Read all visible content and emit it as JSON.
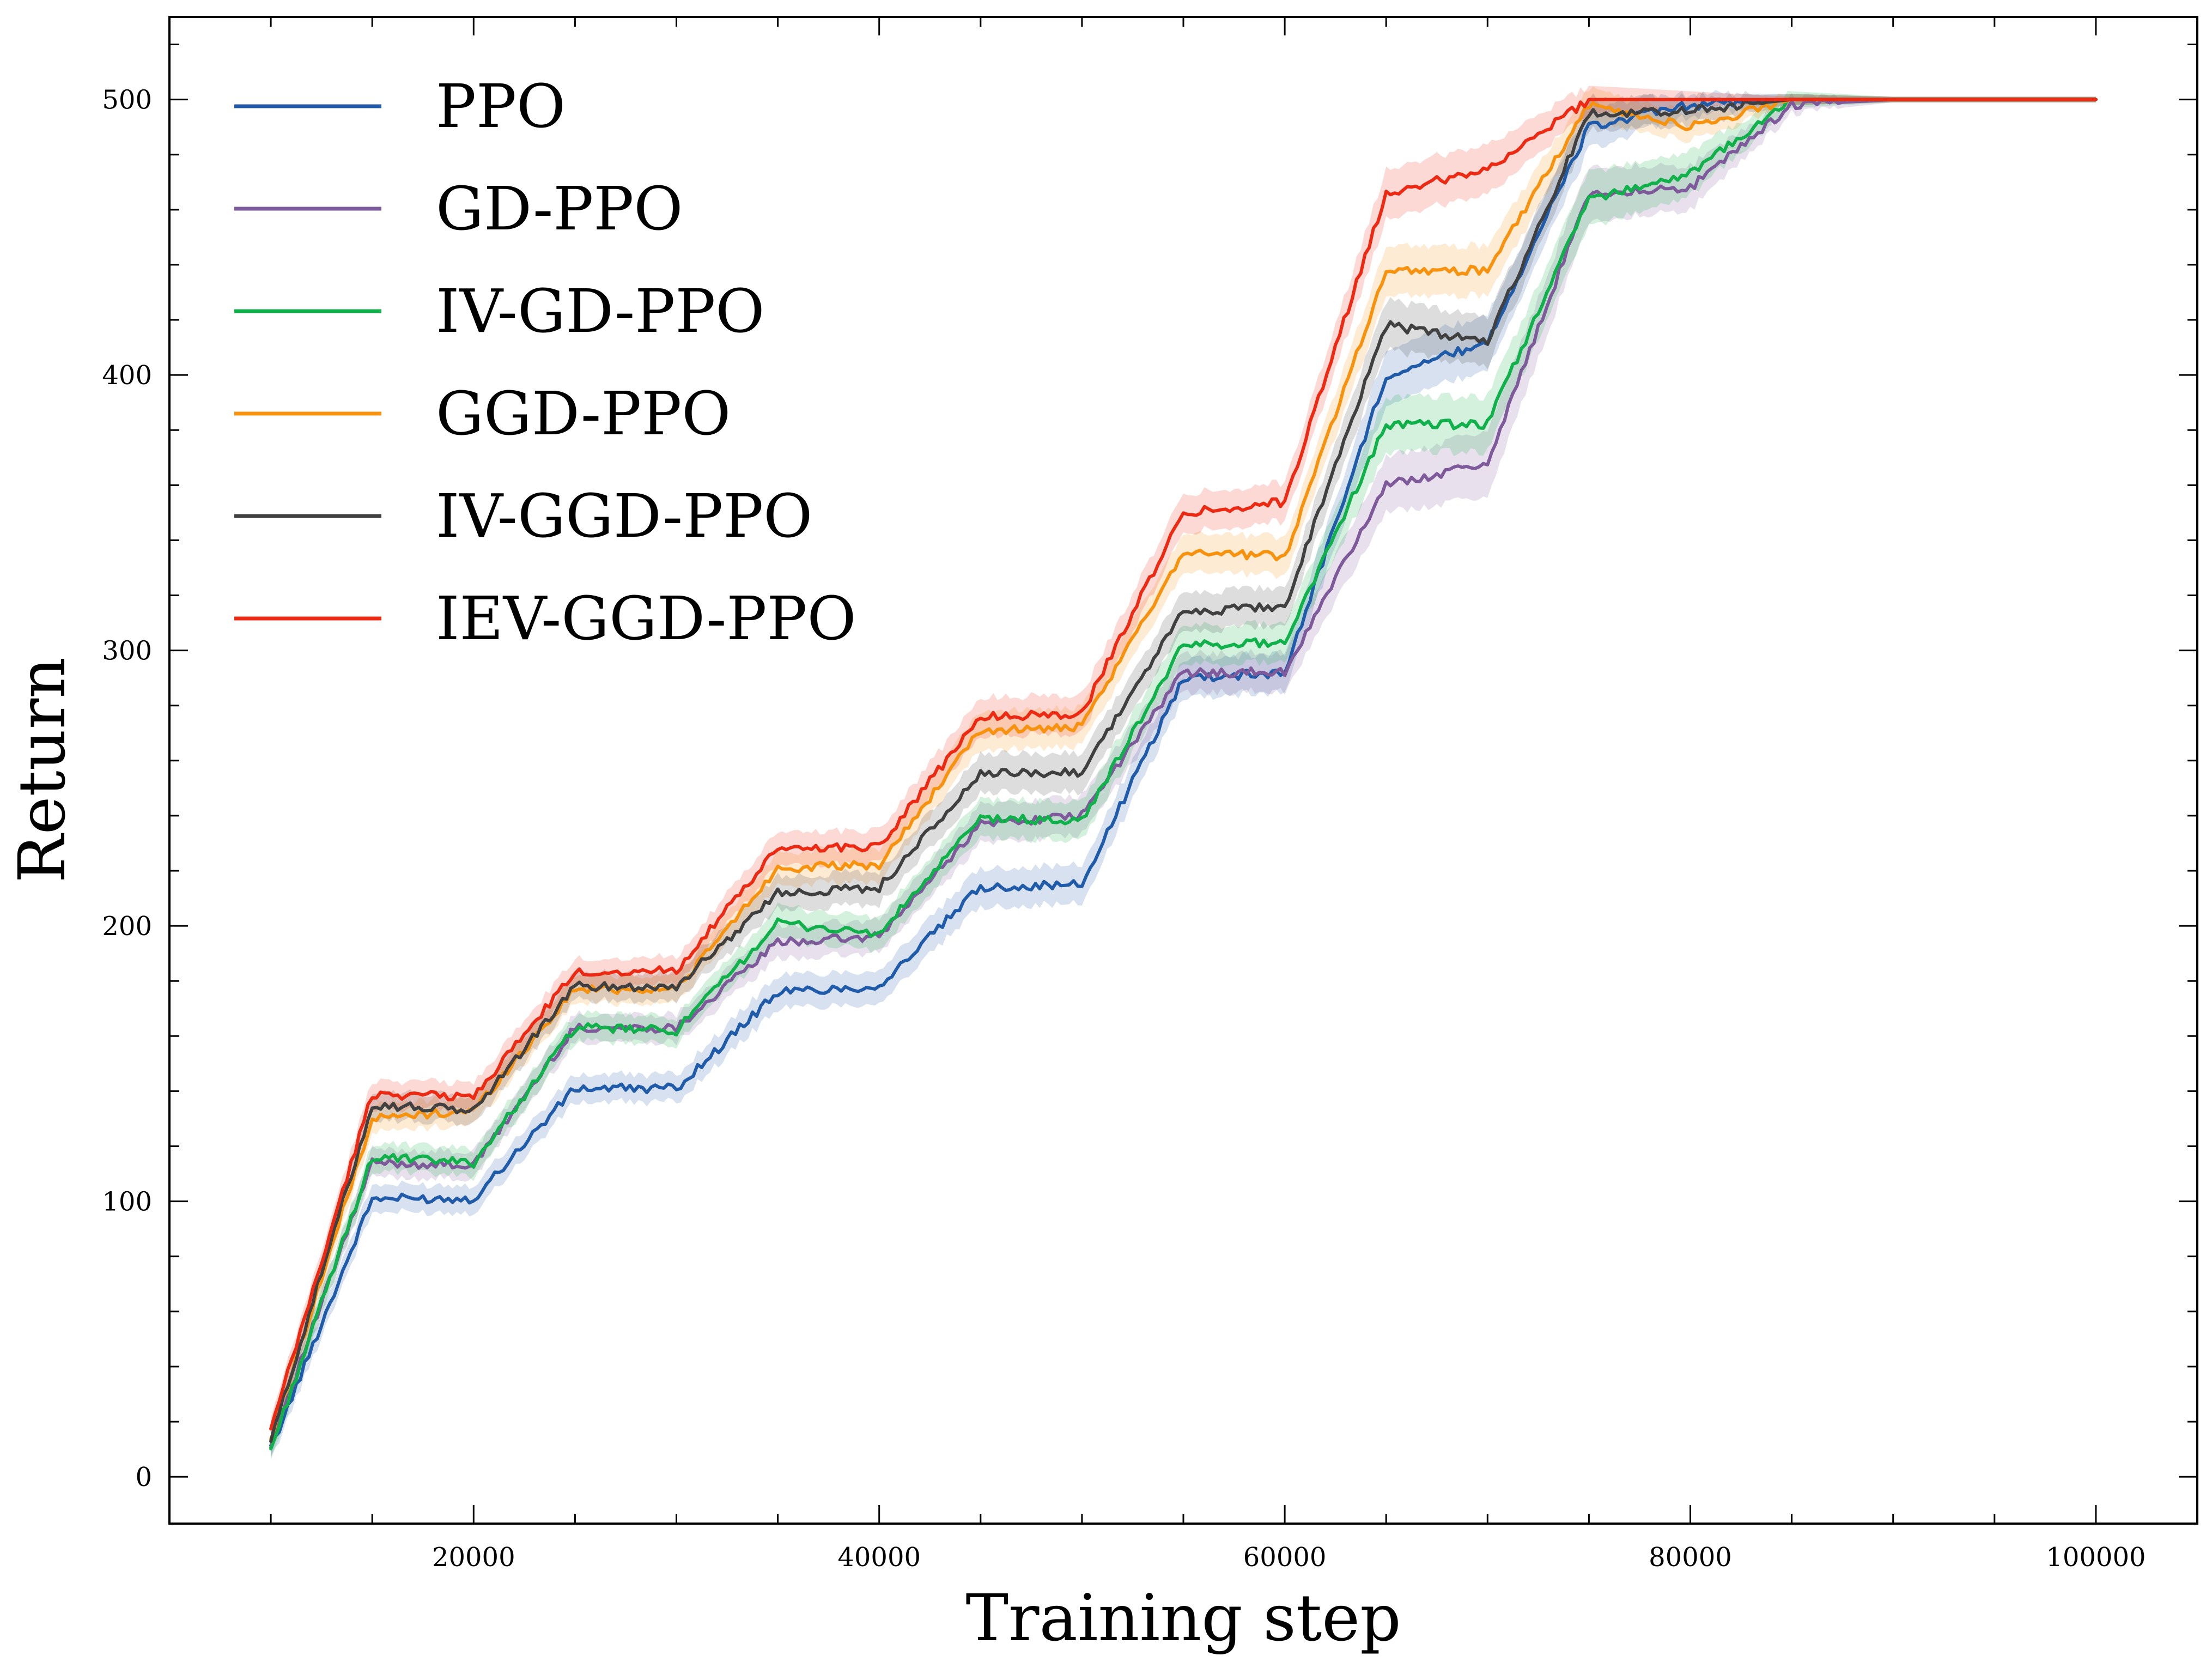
{
  "chart_data": {
    "type": "line",
    "title": "",
    "xlabel": "Training step",
    "ylabel": "Return",
    "xlim": [
      5000,
      105000
    ],
    "ylim": [
      -17,
      530
    ],
    "xticks": [
      20000,
      40000,
      60000,
      80000,
      100000
    ],
    "yticks": [
      0,
      100,
      200,
      300,
      400,
      500
    ],
    "x_minor_step": 5000,
    "y_minor_step": 20,
    "grid": false,
    "legend_position": "top-left",
    "x": [
      10000,
      15000,
      20000,
      25000,
      30000,
      35000,
      40000,
      45000,
      50000,
      55000,
      60000,
      65000,
      70000,
      75000,
      80000,
      85000,
      90000,
      95000,
      100000
    ],
    "series": [
      {
        "name": "PPO",
        "color": "#1f5ba8",
        "values": [
          10,
          101,
          101,
          141,
          141,
          176,
          178,
          214,
          215,
          290,
          292,
          400,
          412,
          490,
          498,
          500,
          500,
          500,
          500
        ],
        "band": [
          4,
          5,
          5,
          5,
          5,
          6,
          6,
          7,
          7,
          7,
          7,
          10,
          10,
          8,
          4,
          2,
          1,
          1,
          1
        ]
      },
      {
        "name": "GD-PPO",
        "color": "#7e5a9b",
        "values": [
          12,
          114,
          113,
          163,
          163,
          194,
          196,
          237,
          240,
          292,
          292,
          360,
          368,
          466,
          468,
          498,
          500,
          500,
          500
        ],
        "band": [
          4,
          5,
          5,
          5,
          5,
          6,
          6,
          7,
          7,
          7,
          7,
          10,
          12,
          10,
          8,
          3,
          1,
          1,
          1
        ]
      },
      {
        "name": "IV-GD-PPO",
        "color": "#10b04a",
        "values": [
          10,
          116,
          114,
          163,
          162,
          201,
          197,
          239,
          238,
          302,
          303,
          382,
          382,
          464,
          473,
          500,
          500,
          500,
          500
        ],
        "band": [
          4,
          5,
          5,
          5,
          5,
          6,
          6,
          7,
          7,
          7,
          7,
          10,
          10,
          10,
          8,
          3,
          1,
          1,
          1
        ]
      },
      {
        "name": "GGD-PPO",
        "color": "#f7920f",
        "values": [
          14,
          130,
          133,
          177,
          177,
          221,
          222,
          271,
          272,
          336,
          334,
          438,
          438,
          498,
          490,
          500,
          500,
          500,
          500
        ],
        "band": [
          4,
          5,
          5,
          5,
          5,
          6,
          6,
          7,
          7,
          7,
          7,
          9,
          9,
          6,
          5,
          2,
          1,
          1,
          1
        ]
      },
      {
        "name": "IV-GGD-PPO",
        "color": "#404040",
        "values": [
          13,
          135,
          133,
          178,
          178,
          212,
          214,
          255,
          256,
          314,
          316,
          418,
          412,
          495,
          496,
          500,
          500,
          500,
          500
        ],
        "band": [
          4,
          5,
          5,
          5,
          5,
          6,
          6,
          7,
          7,
          7,
          7,
          9,
          9,
          6,
          5,
          2,
          1,
          1,
          1
        ]
      },
      {
        "name": "IEV-GGD-PPO",
        "color": "#ec2a13",
        "values": [
          17,
          139,
          138,
          183,
          184,
          228,
          229,
          276,
          277,
          350,
          354,
          466,
          475,
          500,
          500,
          500,
          500,
          500,
          500
        ],
        "band": [
          4,
          5,
          5,
          5,
          5,
          6,
          6,
          7,
          7,
          7,
          7,
          9,
          9,
          5,
          3,
          1,
          1,
          1,
          1
        ]
      }
    ]
  }
}
